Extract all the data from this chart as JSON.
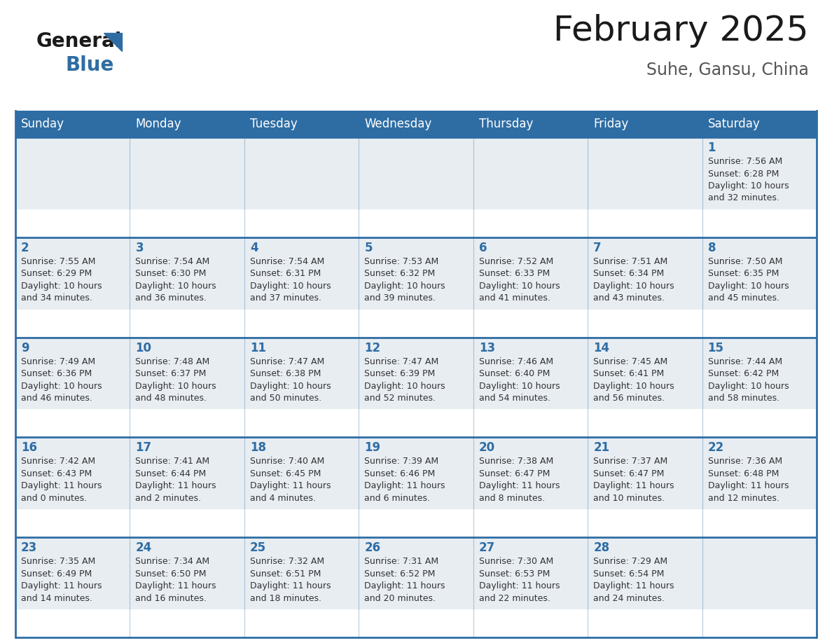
{
  "title": "February 2025",
  "subtitle": "Suhe, Gansu, China",
  "header_bg_color": "#2E6DA4",
  "header_text_color": "#FFFFFF",
  "bg_color": "#FFFFFF",
  "cell_bg_color": "#E8EDF2",
  "day_number_color": "#2E6DA4",
  "cell_text_color": "#333333",
  "border_color": "#2E6DA4",
  "days_of_week": [
    "Sunday",
    "Monday",
    "Tuesday",
    "Wednesday",
    "Thursday",
    "Friday",
    "Saturday"
  ],
  "weeks": [
    [
      {
        "day": "",
        "info": ""
      },
      {
        "day": "",
        "info": ""
      },
      {
        "day": "",
        "info": ""
      },
      {
        "day": "",
        "info": ""
      },
      {
        "day": "",
        "info": ""
      },
      {
        "day": "",
        "info": ""
      },
      {
        "day": "1",
        "info": "Sunrise: 7:56 AM\nSunset: 6:28 PM\nDaylight: 10 hours\nand 32 minutes."
      }
    ],
    [
      {
        "day": "2",
        "info": "Sunrise: 7:55 AM\nSunset: 6:29 PM\nDaylight: 10 hours\nand 34 minutes."
      },
      {
        "day": "3",
        "info": "Sunrise: 7:54 AM\nSunset: 6:30 PM\nDaylight: 10 hours\nand 36 minutes."
      },
      {
        "day": "4",
        "info": "Sunrise: 7:54 AM\nSunset: 6:31 PM\nDaylight: 10 hours\nand 37 minutes."
      },
      {
        "day": "5",
        "info": "Sunrise: 7:53 AM\nSunset: 6:32 PM\nDaylight: 10 hours\nand 39 minutes."
      },
      {
        "day": "6",
        "info": "Sunrise: 7:52 AM\nSunset: 6:33 PM\nDaylight: 10 hours\nand 41 minutes."
      },
      {
        "day": "7",
        "info": "Sunrise: 7:51 AM\nSunset: 6:34 PM\nDaylight: 10 hours\nand 43 minutes."
      },
      {
        "day": "8",
        "info": "Sunrise: 7:50 AM\nSunset: 6:35 PM\nDaylight: 10 hours\nand 45 minutes."
      }
    ],
    [
      {
        "day": "9",
        "info": "Sunrise: 7:49 AM\nSunset: 6:36 PM\nDaylight: 10 hours\nand 46 minutes."
      },
      {
        "day": "10",
        "info": "Sunrise: 7:48 AM\nSunset: 6:37 PM\nDaylight: 10 hours\nand 48 minutes."
      },
      {
        "day": "11",
        "info": "Sunrise: 7:47 AM\nSunset: 6:38 PM\nDaylight: 10 hours\nand 50 minutes."
      },
      {
        "day": "12",
        "info": "Sunrise: 7:47 AM\nSunset: 6:39 PM\nDaylight: 10 hours\nand 52 minutes."
      },
      {
        "day": "13",
        "info": "Sunrise: 7:46 AM\nSunset: 6:40 PM\nDaylight: 10 hours\nand 54 minutes."
      },
      {
        "day": "14",
        "info": "Sunrise: 7:45 AM\nSunset: 6:41 PM\nDaylight: 10 hours\nand 56 minutes."
      },
      {
        "day": "15",
        "info": "Sunrise: 7:44 AM\nSunset: 6:42 PM\nDaylight: 10 hours\nand 58 minutes."
      }
    ],
    [
      {
        "day": "16",
        "info": "Sunrise: 7:42 AM\nSunset: 6:43 PM\nDaylight: 11 hours\nand 0 minutes."
      },
      {
        "day": "17",
        "info": "Sunrise: 7:41 AM\nSunset: 6:44 PM\nDaylight: 11 hours\nand 2 minutes."
      },
      {
        "day": "18",
        "info": "Sunrise: 7:40 AM\nSunset: 6:45 PM\nDaylight: 11 hours\nand 4 minutes."
      },
      {
        "day": "19",
        "info": "Sunrise: 7:39 AM\nSunset: 6:46 PM\nDaylight: 11 hours\nand 6 minutes."
      },
      {
        "day": "20",
        "info": "Sunrise: 7:38 AM\nSunset: 6:47 PM\nDaylight: 11 hours\nand 8 minutes."
      },
      {
        "day": "21",
        "info": "Sunrise: 7:37 AM\nSunset: 6:47 PM\nDaylight: 11 hours\nand 10 minutes."
      },
      {
        "day": "22",
        "info": "Sunrise: 7:36 AM\nSunset: 6:48 PM\nDaylight: 11 hours\nand 12 minutes."
      }
    ],
    [
      {
        "day": "23",
        "info": "Sunrise: 7:35 AM\nSunset: 6:49 PM\nDaylight: 11 hours\nand 14 minutes."
      },
      {
        "day": "24",
        "info": "Sunrise: 7:34 AM\nSunset: 6:50 PM\nDaylight: 11 hours\nand 16 minutes."
      },
      {
        "day": "25",
        "info": "Sunrise: 7:32 AM\nSunset: 6:51 PM\nDaylight: 11 hours\nand 18 minutes."
      },
      {
        "day": "26",
        "info": "Sunrise: 7:31 AM\nSunset: 6:52 PM\nDaylight: 11 hours\nand 20 minutes."
      },
      {
        "day": "27",
        "info": "Sunrise: 7:30 AM\nSunset: 6:53 PM\nDaylight: 11 hours\nand 22 minutes."
      },
      {
        "day": "28",
        "info": "Sunrise: 7:29 AM\nSunset: 6:54 PM\nDaylight: 11 hours\nand 24 minutes."
      },
      {
        "day": "",
        "info": ""
      }
    ]
  ],
  "logo_general_color": "#1a1a1a",
  "logo_blue_color": "#2E6DA4",
  "title_fontsize": 36,
  "subtitle_fontsize": 17,
  "dow_fontsize": 12,
  "day_num_fontsize": 12,
  "cell_info_fontsize": 9
}
